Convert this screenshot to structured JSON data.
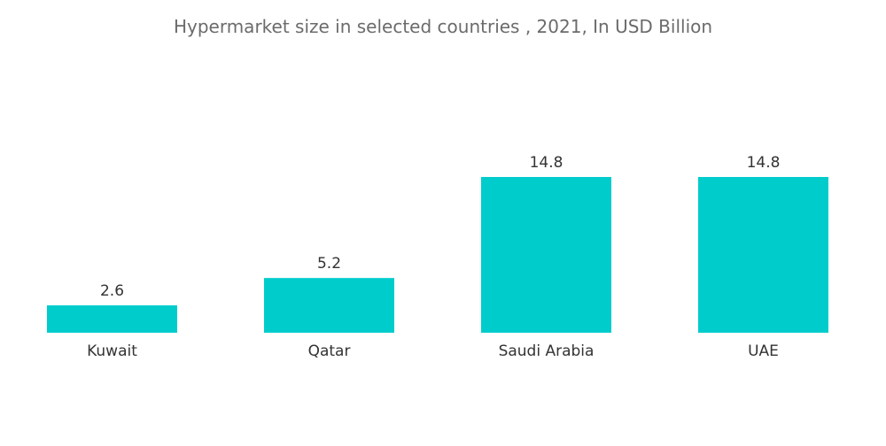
{
  "chart_data": {
    "type": "bar",
    "title": "Hypermarket size in selected countries , 2021, In USD Billion",
    "categories": [
      "Kuwait",
      "Qatar",
      "Saudi Arabia",
      "UAE"
    ],
    "values": [
      2.6,
      5.2,
      14.8,
      14.8
    ],
    "data_labels": [
      "2.6",
      "5.2",
      "14.8",
      "14.8"
    ],
    "xlabel": "",
    "ylabel": "",
    "ylim": [
      0,
      14.8
    ],
    "grid": false,
    "legend": "none",
    "bar_color": "#00CCCC"
  }
}
